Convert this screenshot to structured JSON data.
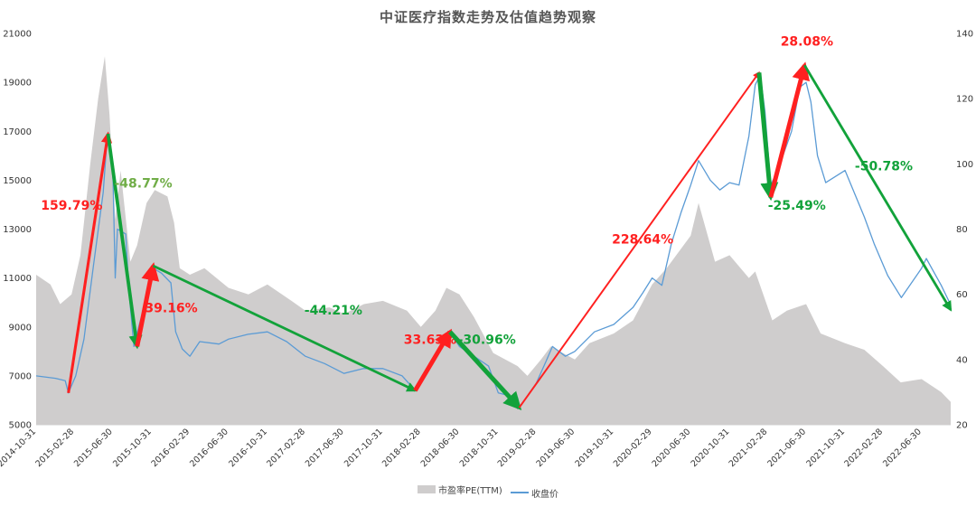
{
  "chart_data": {
    "type": "area+line",
    "title": "中证医疗指数走势及估值趋势观察",
    "y_left": {
      "min": 5000,
      "max": 21000,
      "ticks": [
        5000,
        7000,
        9000,
        11000,
        13000,
        15000,
        17000,
        19000,
        21000
      ]
    },
    "y_right": {
      "min": 20,
      "max": 140,
      "ticks": [
        20,
        40,
        60,
        80,
        100,
        120,
        140
      ]
    },
    "x_range": [
      "2014-10-31",
      "2022-09-30"
    ],
    "x_ticks": [
      "2014-10-31",
      "2015-02-28",
      "2015-06-30",
      "2015-10-31",
      "2016-02-29",
      "2016-06-30",
      "2016-10-31",
      "2017-02-28",
      "2017-06-30",
      "2017-10-31",
      "2018-02-28",
      "2018-06-30",
      "2018-10-31",
      "2019-02-28",
      "2019-06-30",
      "2019-10-31",
      "2020-02-29",
      "2020-06-30",
      "2020-10-31",
      "2021-02-28",
      "2021-06-30",
      "2021-10-31",
      "2022-02-28",
      "2022-06-30"
    ],
    "legend": [
      "市盈率PE(TTM)",
      "收盘价"
    ],
    "legend_position": "bottom",
    "series": [
      {
        "name": "市盈率PE(TTM)",
        "axis": "right",
        "style": "area",
        "color": "#cfcdcd",
        "points": [
          [
            "2014-10-31",
            66
          ],
          [
            "2014-12-15",
            63
          ],
          [
            "2015-01-15",
            57
          ],
          [
            "2015-02-20",
            60
          ],
          [
            "2015-03-20",
            72
          ],
          [
            "2015-04-20",
            100
          ],
          [
            "2015-05-15",
            120
          ],
          [
            "2015-06-05",
            133
          ],
          [
            "2015-06-20",
            115
          ],
          [
            "2015-07-08",
            83
          ],
          [
            "2015-07-25",
            98
          ],
          [
            "2015-08-25",
            70
          ],
          [
            "2015-09-15",
            75
          ],
          [
            "2015-10-15",
            88
          ],
          [
            "2015-11-10",
            92
          ],
          [
            "2015-12-20",
            90
          ],
          [
            "2016-01-10",
            82
          ],
          [
            "2016-01-28",
            68
          ],
          [
            "2016-02-29",
            66
          ],
          [
            "2016-04-15",
            68
          ],
          [
            "2016-06-30",
            62
          ],
          [
            "2016-09-01",
            60
          ],
          [
            "2016-10-31",
            63
          ],
          [
            "2017-01-15",
            58
          ],
          [
            "2017-02-28",
            55
          ],
          [
            "2017-05-15",
            56
          ],
          [
            "2017-06-30",
            54
          ],
          [
            "2017-09-01",
            57
          ],
          [
            "2017-10-31",
            58
          ],
          [
            "2018-01-15",
            55
          ],
          [
            "2018-02-28",
            50
          ],
          [
            "2018-04-15",
            55
          ],
          [
            "2018-05-20",
            62
          ],
          [
            "2018-06-30",
            60
          ],
          [
            "2018-08-15",
            53
          ],
          [
            "2018-10-15",
            42
          ],
          [
            "2018-12-31",
            38
          ],
          [
            "2019-01-31",
            35
          ],
          [
            "2019-03-15",
            40
          ],
          [
            "2019-04-15",
            44
          ],
          [
            "2019-06-30",
            40
          ],
          [
            "2019-08-15",
            45
          ],
          [
            "2019-10-31",
            48
          ],
          [
            "2019-12-31",
            52
          ],
          [
            "2020-02-29",
            63
          ],
          [
            "2020-04-15",
            68
          ],
          [
            "2020-06-30",
            78
          ],
          [
            "2020-07-25",
            88
          ],
          [
            "2020-09-15",
            70
          ],
          [
            "2020-10-31",
            72
          ],
          [
            "2020-12-31",
            65
          ],
          [
            "2021-01-20",
            67
          ],
          [
            "2021-03-15",
            52
          ],
          [
            "2021-04-30",
            55
          ],
          [
            "2021-06-30",
            57
          ],
          [
            "2021-08-15",
            48
          ],
          [
            "2021-10-31",
            45
          ],
          [
            "2021-12-31",
            43
          ],
          [
            "2022-02-28",
            38
          ],
          [
            "2022-04-25",
            33
          ],
          [
            "2022-06-30",
            34
          ],
          [
            "2022-08-31",
            30
          ],
          [
            "2022-09-30",
            27
          ]
        ]
      },
      {
        "name": "收盘价",
        "axis": "left",
        "style": "line",
        "color": "#5b9bd5",
        "points": [
          [
            "2014-10-31",
            7000
          ],
          [
            "2014-12-31",
            6900
          ],
          [
            "2015-01-31",
            6800
          ],
          [
            "2015-02-10",
            6300
          ],
          [
            "2015-03-05",
            7000
          ],
          [
            "2015-03-31",
            8500
          ],
          [
            "2015-04-30",
            11500
          ],
          [
            "2015-05-31",
            14500
          ],
          [
            "2015-06-10",
            16300
          ],
          [
            "2015-06-20",
            16700
          ],
          [
            "2015-07-01",
            15000
          ],
          [
            "2015-07-08",
            11000
          ],
          [
            "2015-07-15",
            13000
          ],
          [
            "2015-08-10",
            12800
          ],
          [
            "2015-08-20",
            10500
          ],
          [
            "2015-09-05",
            8200
          ],
          [
            "2015-09-20",
            9000
          ],
          [
            "2015-10-15",
            10200
          ],
          [
            "2015-11-05",
            11400
          ],
          [
            "2015-12-01",
            11200
          ],
          [
            "2015-12-31",
            10800
          ],
          [
            "2016-01-15",
            8800
          ],
          [
            "2016-02-05",
            8100
          ],
          [
            "2016-02-29",
            7800
          ],
          [
            "2016-03-31",
            8400
          ],
          [
            "2016-05-31",
            8300
          ],
          [
            "2016-06-30",
            8500
          ],
          [
            "2016-08-31",
            8700
          ],
          [
            "2016-10-31",
            8800
          ],
          [
            "2016-12-31",
            8400
          ],
          [
            "2017-02-28",
            7800
          ],
          [
            "2017-04-30",
            7500
          ],
          [
            "2017-06-30",
            7100
          ],
          [
            "2017-08-31",
            7300
          ],
          [
            "2017-10-31",
            7300
          ],
          [
            "2017-12-31",
            7000
          ],
          [
            "2018-02-10",
            6400
          ],
          [
            "2018-03-15",
            7000
          ],
          [
            "2018-04-15",
            7700
          ],
          [
            "2018-05-31",
            8700
          ],
          [
            "2018-06-15",
            8500
          ],
          [
            "2018-06-30",
            8200
          ],
          [
            "2018-08-15",
            7800
          ],
          [
            "2018-09-30",
            7400
          ],
          [
            "2018-10-31",
            6300
          ],
          [
            "2018-12-31",
            6100
          ],
          [
            "2019-01-05",
            5700
          ],
          [
            "2019-02-28",
            6700
          ],
          [
            "2019-03-31",
            7600
          ],
          [
            "2019-04-20",
            8200
          ],
          [
            "2019-05-31",
            7800
          ],
          [
            "2019-06-30",
            8000
          ],
          [
            "2019-08-31",
            8800
          ],
          [
            "2019-10-31",
            9100
          ],
          [
            "2019-12-31",
            9800
          ],
          [
            "2020-01-31",
            10400
          ],
          [
            "2020-02-29",
            11000
          ],
          [
            "2020-03-31",
            10700
          ],
          [
            "2020-04-30",
            12400
          ],
          [
            "2020-05-31",
            13700
          ],
          [
            "2020-06-30",
            14800
          ],
          [
            "2020-07-25",
            15800
          ],
          [
            "2020-08-31",
            15000
          ],
          [
            "2020-09-30",
            14600
          ],
          [
            "2020-10-31",
            14900
          ],
          [
            "2020-11-30",
            14800
          ],
          [
            "2020-12-31",
            16800
          ],
          [
            "2021-01-20",
            18900
          ],
          [
            "2021-02-05",
            19300
          ],
          [
            "2021-02-20",
            17800
          ],
          [
            "2021-03-10",
            14800
          ],
          [
            "2021-04-01",
            15400
          ],
          [
            "2021-05-15",
            17000
          ],
          [
            "2021-06-10",
            18800
          ],
          [
            "2021-06-30",
            19000
          ],
          [
            "2021-07-15",
            18200
          ],
          [
            "2021-08-05",
            16000
          ],
          [
            "2021-08-31",
            14900
          ],
          [
            "2021-10-31",
            15400
          ],
          [
            "2021-12-31",
            13500
          ],
          [
            "2022-01-31",
            12400
          ],
          [
            "2022-03-15",
            11100
          ],
          [
            "2022-04-27",
            10200
          ],
          [
            "2022-06-30",
            11400
          ],
          [
            "2022-07-15",
            11800
          ],
          [
            "2022-08-31",
            10700
          ],
          [
            "2022-09-30",
            9900
          ]
        ]
      }
    ],
    "annotations": [
      {
        "text": "159.79%",
        "direction": "up",
        "from": [
          "2015-02-10",
          6300
        ],
        "to": [
          "2015-06-15",
          16900
        ],
        "text_at": [
          "2014-11-15",
          13800
        ]
      },
      {
        "text": "-48.77%",
        "direction": "down",
        "from": [
          "2015-06-15",
          16900
        ],
        "to": [
          "2015-09-15",
          8200
        ],
        "text_at": [
          "2015-07-05",
          14700
        ],
        "color": "#70ad47"
      },
      {
        "text": "39.16%",
        "direction": "up",
        "from": [
          "2015-09-15",
          8200
        ],
        "to": [
          "2015-11-05",
          11500
        ],
        "text_at": [
          "2015-10-10",
          9600
        ]
      },
      {
        "text": "-44.21%",
        "direction": "down",
        "from": [
          "2015-11-05",
          11500
        ],
        "to": [
          "2018-02-10",
          6400
        ],
        "text_at": [
          "2017-02-25",
          9500
        ]
      },
      {
        "text": "33.63%",
        "direction": "up",
        "from": [
          "2018-02-10",
          6400
        ],
        "to": [
          "2018-05-31",
          8800
        ],
        "text_at": [
          "2018-01-05",
          8300
        ]
      },
      {
        "text": "-30.96%",
        "direction": "down",
        "from": [
          "2018-05-31",
          8800
        ],
        "to": [
          "2019-01-05",
          5700
        ],
        "text_at": [
          "2018-06-25",
          8300
        ]
      },
      {
        "text": "228.64%",
        "direction": "up",
        "from": [
          "2019-01-05",
          5700
        ],
        "to": [
          "2021-02-01",
          19400
        ],
        "text_at": [
          "2019-10-25",
          12400
        ]
      },
      {
        "text": "-25.49%",
        "direction": "down",
        "from": [
          "2021-02-01",
          19400
        ],
        "to": [
          "2021-03-10",
          14300
        ],
        "text_at": [
          "2021-03-01",
          13800
        ]
      },
      {
        "text": "28.08%",
        "direction": "up",
        "from": [
          "2021-03-10",
          14300
        ],
        "to": [
          "2021-06-25",
          19700
        ],
        "text_at": [
          "2021-04-10",
          20500
        ]
      },
      {
        "text": "-50.78%",
        "direction": "down",
        "from": [
          "2021-06-25",
          19700
        ],
        "to": [
          "2022-09-30",
          9700
        ],
        "text_at": [
          "2021-12-01",
          15400
        ]
      }
    ],
    "colors": {
      "up": "#ff2020",
      "down": "#12a23a",
      "down_label": "#12a23a",
      "area": "#cfcdcd",
      "line": "#5b9bd5"
    },
    "grid": false
  }
}
